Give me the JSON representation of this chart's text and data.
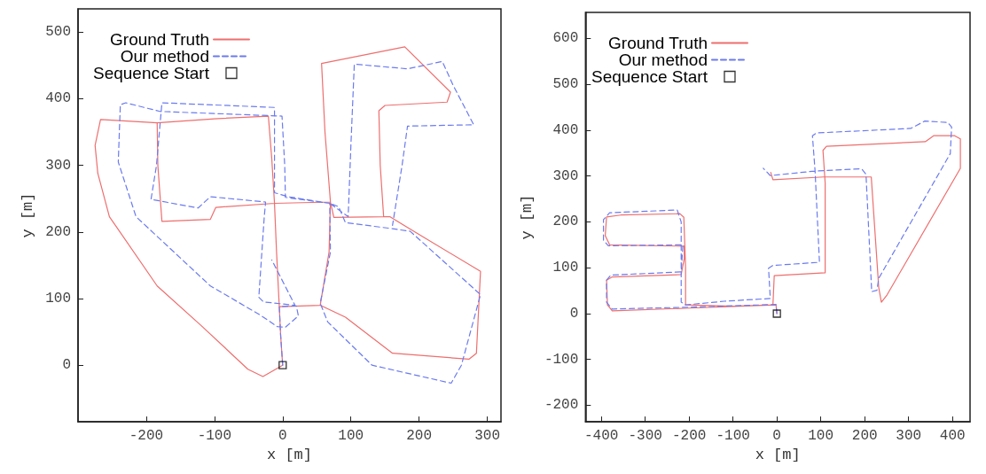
{
  "chart_data": [
    {
      "type": "line",
      "xlabel": "x [m]",
      "ylabel": "y [m]",
      "xlim": [
        -300,
        320
      ],
      "ylim": [
        -85,
        535
      ],
      "xticks": [
        -200,
        -100,
        0,
        100,
        200,
        300
      ],
      "yticks": [
        0,
        100,
        200,
        300,
        400,
        500
      ],
      "legend": "top left",
      "series": [
        {
          "name": "Ground Truth",
          "color": "#ee6e6e",
          "line_style": "solid",
          "x": [
            -184,
            -267,
            -275,
            -271,
            -254,
            -184,
            -120,
            -51,
            -29,
            0,
            -3,
            -5,
            55,
            92,
            161,
            273,
            284,
            290,
            205,
            157,
            148,
            75,
            70,
            62,
            57,
            179,
            246,
            241,
            150,
            141,
            143,
            148,
            null,
            55,
            68,
            70,
            -12,
            -98,
            -106,
            -177,
            -183,
            -184,
            -100,
            -21,
            -16,
            -12,
            -9,
            -5
          ],
          "values": [
            364,
            369,
            330,
            288,
            223,
            119,
            60,
            -6,
            -17,
            0,
            45,
            88,
            90,
            72,
            18,
            9,
            18,
            141,
            193,
            223,
            223,
            222,
            245,
            350,
            453,
            478,
            410,
            395,
            390,
            382,
            300,
            223,
            null,
            90,
            170,
            245,
            243,
            237,
            219,
            216,
            300,
            364,
            370,
            374,
            310,
            243,
            170,
            88
          ]
        },
        {
          "name": "Our method",
          "color": "#6b7bee",
          "line_style": "dashed",
          "x": [
            0,
            -3,
            -5,
            20,
            23,
            4,
            -8,
            -34,
            -106,
            -215,
            -241,
            -238,
            -230,
            -180,
            -1,
            3,
            4,
            69,
            70,
            55,
            66,
            131,
            247,
            262,
            290,
            187,
            161,
            92,
            82,
            69,
            96,
            100,
            105,
            183,
            234,
            250,
            280,
            183,
            175,
            161,
            null,
            69,
            8,
            -12,
            -12,
            -177,
            -185,
            -193,
            -124,
            -106,
            -25,
            -27,
            -35,
            -28,
            18,
            -16
          ],
          "values": [
            0,
            45,
            88,
            89,
            74,
            57,
            58,
            76,
            119,
            223,
            305,
            391,
            394,
            381,
            374,
            300,
            252,
            243,
            170,
            93,
            65,
            0,
            -27,
            0,
            106,
            201,
            205,
            214,
            238,
            243,
            223,
            330,
            452,
            445,
            456,
            420,
            361,
            359,
            300,
            210,
            null,
            243,
            253,
            259,
            387,
            394,
            300,
            249,
            236,
            253,
            245,
            223,
            102,
            95,
            90,
            158
          ]
        },
        {
          "name": "Sequence Start",
          "type": "scatter",
          "color": "#000000",
          "marker": "square",
          "x": [
            0
          ],
          "values": [
            0
          ]
        }
      ]
    },
    {
      "type": "line",
      "xlabel": "x [m]",
      "ylabel": "y [m]",
      "xlim": [
        -436,
        440
      ],
      "ylim": [
        -236,
        657
      ],
      "xticks": [
        -400,
        -300,
        -200,
        -100,
        0,
        100,
        200,
        300,
        400
      ],
      "yticks": [
        -200,
        -100,
        0,
        100,
        200,
        300,
        400,
        500,
        600
      ],
      "legend": "top left",
      "series": [
        {
          "name": "Ground Truth",
          "color": "#ee6e6e",
          "line_style": "solid",
          "x": [
            0,
            -2,
            -198,
            -375,
            -386,
            -388,
            -375,
            -218,
            -211,
            -211,
            -381,
            -391,
            -388,
            -356,
            -221,
            -212,
            -208,
            -208,
            -100,
            -9,
            -6,
            110,
            110,
            105,
            113,
            338,
            357,
            405,
            418,
            418,
            251,
            238,
            232,
            215,
            106,
            -9,
            -14
          ],
          "values": [
            0,
            19,
            12,
            6,
            19,
            73,
            80,
            85,
            120,
            147,
            150,
            170,
            211,
            215,
            218,
            210,
            100,
            19,
            16,
            19,
            83,
            89,
            285,
            356,
            365,
            375,
            388,
            388,
            381,
            317,
            41,
            25,
            57,
            298,
            298,
            292,
            308
          ]
        },
        {
          "name": "Our method",
          "color": "#6b7bee",
          "line_style": "dashed",
          "x": [
            0,
            -2,
            -200,
            -375,
            -388,
            -388,
            -378,
            -218,
            -214,
            -384,
            -395,
            -395,
            -381,
            -227,
            -218,
            -218,
            -208,
            -120,
            -15,
            -19,
            -9,
            97,
            87,
            81,
            90,
            305,
            337,
            389,
            398,
            395,
            232,
            228,
            216,
            203,
            193,
            87,
            -15,
            -31
          ],
          "values": [
            0,
            20,
            14,
            10,
            25,
            73,
            84,
            91,
            150,
            148,
            160,
            205,
            220,
            226,
            200,
            25,
            19,
            27,
            33,
            99,
            105,
            112,
            311,
            388,
            394,
            404,
            420,
            417,
            407,
            349,
            77,
            51,
            48,
            304,
            316,
            311,
            301,
            317
          ]
        },
        {
          "name": "Sequence Start",
          "type": "scatter",
          "color": "#000000",
          "marker": "square",
          "x": [
            0
          ],
          "values": [
            0
          ]
        }
      ]
    }
  ]
}
